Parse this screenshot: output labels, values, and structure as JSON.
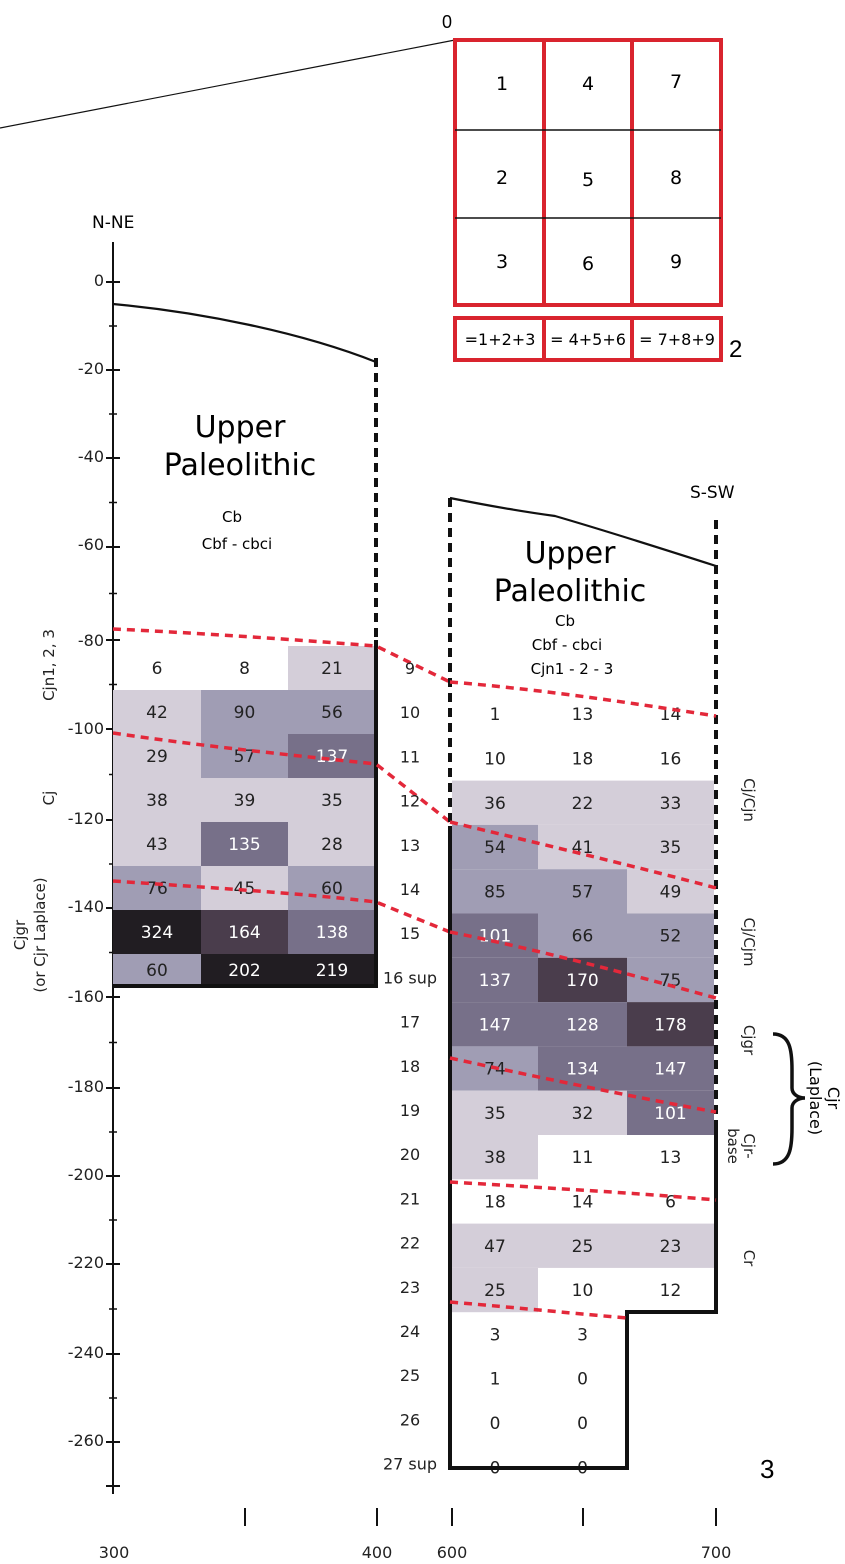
{
  "inset": {
    "origin_label": "0",
    "squares": [
      [
        "1",
        "4",
        "7"
      ],
      [
        "2",
        "5",
        "8"
      ],
      [
        "3",
        "6",
        "9"
      ]
    ],
    "sums": [
      "=1+2+3",
      "= 4+5+6",
      "= 7+8+9"
    ],
    "sum_row_label": "2"
  },
  "orientation": {
    "left": "N-NE",
    "right": "S-SW"
  },
  "y_axis_ticks": [
    "0",
    "-20",
    "-40",
    "-60",
    "-80",
    "-100",
    "-120",
    "-140",
    "-160",
    "-180",
    "-200",
    "-220",
    "-240",
    "-260"
  ],
  "x_axis_labels": [
    "300",
    "400",
    "600",
    "700"
  ],
  "figure_number": "3",
  "left_section": {
    "title_line1": "Upper",
    "title_line2": "Paleolithic",
    "sub1": "Cb",
    "sub2": "Cbf - cbci",
    "layer_labels": [
      "Cjn1, 2, 3",
      "Cj",
      "Cjgr",
      "(or Cjr Laplace)"
    ],
    "counts": [
      [
        "6",
        "8",
        "21"
      ],
      [
        "42",
        "90",
        "56"
      ],
      [
        "29",
        "57",
        "137"
      ],
      [
        "38",
        "39",
        "35"
      ],
      [
        "43",
        "135",
        "28"
      ],
      [
        "76",
        "45",
        "60"
      ],
      [
        "324",
        "164",
        "138"
      ],
      [
        "60",
        "202",
        "219"
      ]
    ]
  },
  "spit_labels": [
    "9",
    "10",
    "11",
    "12",
    "13",
    "14",
    "15",
    "16 sup",
    "17",
    "18",
    "19",
    "20",
    "21",
    "22",
    "23",
    "24",
    "25",
    "26",
    "27 sup"
  ],
  "right_section": {
    "title_line1": "Upper",
    "title_line2": "Paleolithic",
    "sub1": "Cb",
    "sub2": "Cbf - cbci",
    "sub3": "Cjn1 - 2 - 3",
    "layer_labels": [
      "Cj/Cjn",
      "Cj/Cjm",
      "Cjgr",
      "Cjr-",
      "base",
      "Cr",
      "Cjr",
      "(Laplace)"
    ],
    "counts": [
      [
        "1",
        "13",
        "14"
      ],
      [
        "10",
        "18",
        "16"
      ],
      [
        "36",
        "22",
        "33"
      ],
      [
        "54",
        "41",
        "35"
      ],
      [
        "85",
        "57",
        "49"
      ],
      [
        "101",
        "66",
        "52"
      ],
      [
        "137",
        "170",
        "75"
      ],
      [
        "147",
        "128",
        "178"
      ],
      [
        "74",
        "134",
        "147"
      ],
      [
        "35",
        "32",
        "101"
      ],
      [
        "38",
        "11",
        "13"
      ],
      [
        "18",
        "14",
        "6"
      ],
      [
        "47",
        "25",
        "23"
      ],
      [
        "25",
        "10",
        "12"
      ],
      [
        "3",
        "3",
        ""
      ],
      [
        "1",
        "0",
        ""
      ],
      [
        "0",
        "0",
        ""
      ],
      [
        "0",
        "0",
        ""
      ]
    ]
  }
}
